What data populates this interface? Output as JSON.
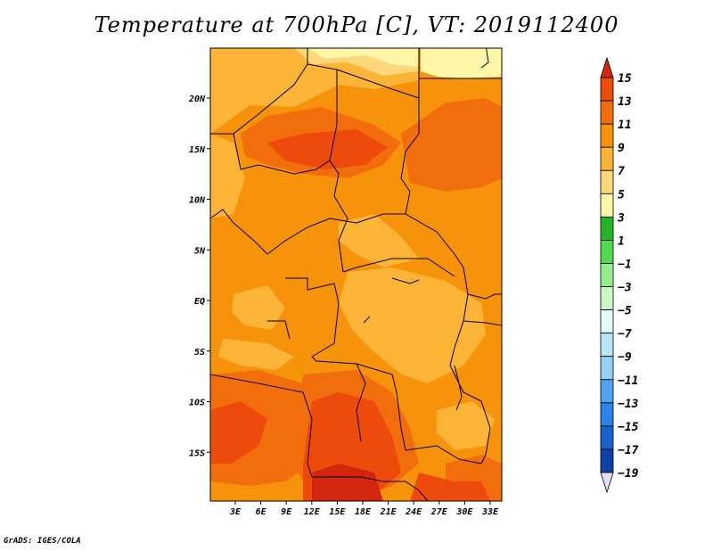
{
  "title": "Temperature at 700hPa [C], VT: 2019112400",
  "footer": "GrADS: IGES/COLA",
  "lat_labels": [
    "20N",
    "15N",
    "10N",
    "5N",
    "EQ",
    "5S",
    "10S",
    "15S"
  ],
  "lon_labels": [
    "3E",
    "6E",
    "9E",
    "12E",
    "15E",
    "18E",
    "21E",
    "24E",
    "27E",
    "30E",
    "33E"
  ],
  "colorbar": {
    "labels": [
      "15",
      "13",
      "11",
      "9",
      "7",
      "5",
      "3",
      "1",
      "−1",
      "−3",
      "−5",
      "−7",
      "−9",
      "−11",
      "−13",
      "−15",
      "−17",
      "−19"
    ],
    "colors": [
      "#d3260e",
      "#ee4a0b",
      "#f26d0b",
      "#f6930b",
      "#fbb435",
      "#fdd77a",
      "#fff6a8",
      "#27b327",
      "#51d94f",
      "#92ee8d",
      "#c9f8c3",
      "#e1fbf8",
      "#b7e6f7",
      "#93d0f3",
      "#4fa3f0",
      "#2c82e6",
      "#1a61cb",
      "#0d43a7",
      "#062d85",
      "#061a5c"
    ],
    "top_arrow_color": "#d3260e",
    "bottom_arrow_color": "#e6e0f6"
  },
  "map_colors": {
    "base": "#f6930b",
    "warm": "#f26d0b",
    "hot": "#ee4a0b",
    "hottest": "#d3260e",
    "cool": "#fbb435",
    "coolest": "#fdd77a",
    "pale": "#fff6a8"
  }
}
